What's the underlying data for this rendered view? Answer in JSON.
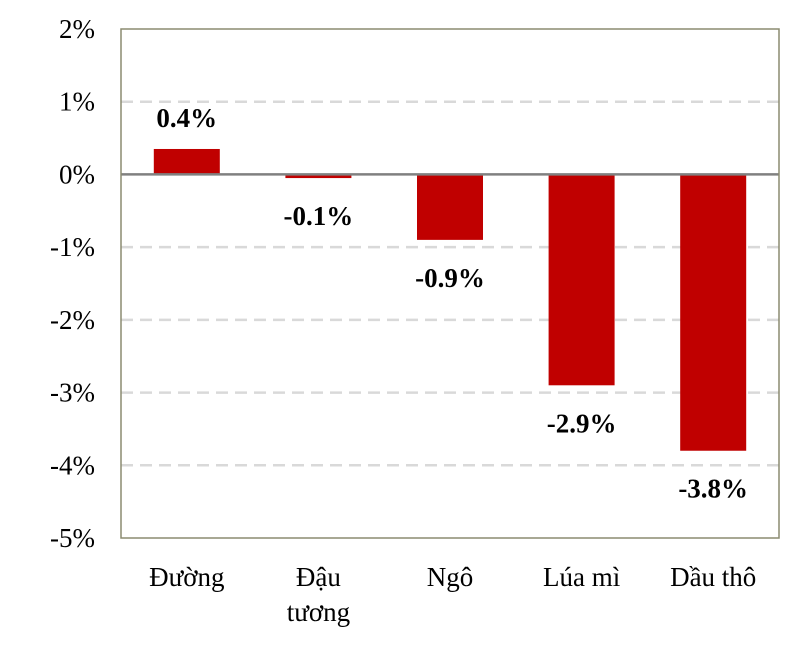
{
  "chart_data": {
    "type": "bar",
    "title": "",
    "xlabel": "",
    "ylabel": "",
    "categories": [
      [
        "Đường"
      ],
      [
        "Đậu",
        "tương"
      ],
      [
        "Ngô"
      ],
      [
        "Lúa mì"
      ],
      [
        "Dầu thô"
      ]
    ],
    "values": [
      0.35,
      -0.05,
      -0.9,
      -2.9,
      -3.8
    ],
    "data_labels": [
      "0.4%",
      "-0.1%",
      "-0.9%",
      "-2.9%",
      "-3.8%"
    ],
    "ylim": [
      -5,
      2
    ],
    "yticks": [
      2,
      1,
      0,
      -1,
      -2,
      -3,
      -4,
      -5
    ],
    "ytick_labels": [
      "2%",
      "1%",
      "0%",
      "-1%",
      "-2%",
      "-3%",
      "-4%",
      "-5%"
    ],
    "grid": true,
    "legend": "none",
    "colors": {
      "bar": "#c00000",
      "grid": "#d9d9d9",
      "zero_line": "#808080",
      "frame": "#8b8b70"
    }
  }
}
